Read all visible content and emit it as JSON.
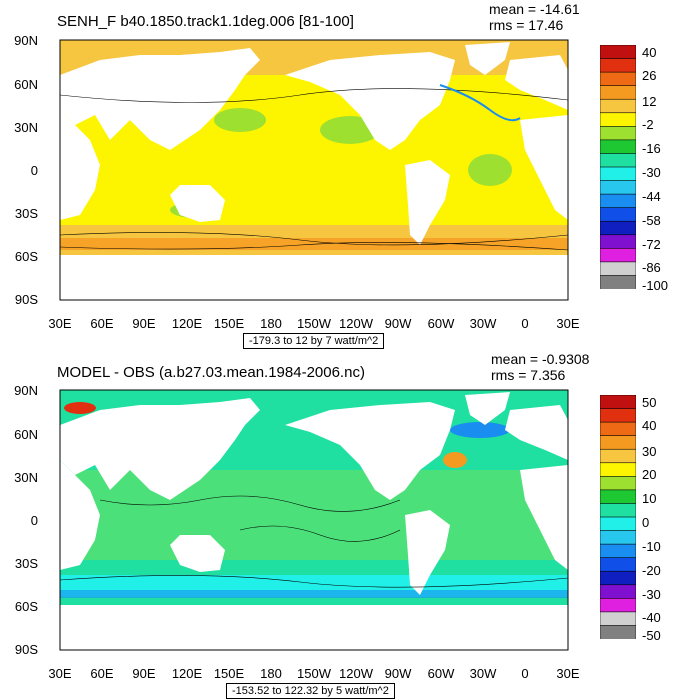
{
  "panels": [
    {
      "title": "SENH_F b40.1850.track1.1deg.006 [81-100]",
      "mean": "mean = -14.61",
      "rms": "rms = 17.46",
      "caption": "-179.3 to 12 by 7 watt/m^2",
      "lat_labels": [
        "90N",
        "60N",
        "30N",
        "0",
        "30S",
        "60S",
        "90S"
      ],
      "lon_labels": [
        "30E",
        "60E",
        "90E",
        "120E",
        "150E",
        "180",
        "150W",
        "120W",
        "90W",
        "60W",
        "30W",
        "0",
        "30E"
      ],
      "colorbar_labels": [
        "40",
        "26",
        "12",
        "-2",
        "-16",
        "-30",
        "-44",
        "-58",
        "-72",
        "-86",
        "-100"
      ],
      "colorbar_colors": [
        "#c01010",
        "#e03010",
        "#ee6a14",
        "#f59a20",
        "#f7c640",
        "#fdf500",
        "#9ee030",
        "#1ec832",
        "#1fe0a0",
        "#20f0e8",
        "#28c8ee",
        "#1a8ef0",
        "#1050e8",
        "#1020c0",
        "#8010d0",
        "#e020e0",
        "#d0d0d0",
        "#808080"
      ]
    },
    {
      "title": "MODEL - OBS (a.b27.03.mean.1984-2006.nc)",
      "mean": "mean = -0.9308",
      "rms": "rms = 7.356",
      "caption": "-153.52 to 122.32 by 5 watt/m^2",
      "lat_labels": [
        "90N",
        "60N",
        "30N",
        "0",
        "30S",
        "60S",
        "90S"
      ],
      "lon_labels": [
        "30E",
        "60E",
        "90E",
        "120E",
        "150E",
        "180",
        "150W",
        "120W",
        "90W",
        "60W",
        "30W",
        "0",
        "30E"
      ],
      "colorbar_labels": [
        "50",
        "40",
        "30",
        "20",
        "10",
        "0",
        "-10",
        "-20",
        "-30",
        "-40",
        "-50"
      ],
      "colorbar_colors": [
        "#c01010",
        "#e03010",
        "#ee6a14",
        "#f59a20",
        "#f7c640",
        "#fdf500",
        "#9ee030",
        "#1ec832",
        "#1fe0a0",
        "#20f0e8",
        "#28c8ee",
        "#1a8ef0",
        "#1050e8",
        "#1020c0",
        "#8010d0",
        "#e020e0",
        "#d0d0d0",
        "#808080"
      ]
    }
  ],
  "map_colors": {
    "land": "#ffffff",
    "top_ocean": "#fdf500",
    "top_warm": "#f7c640",
    "top_cool": "#9ee030",
    "top_cold": "#1ec832",
    "top_strong": "#f59a20",
    "bottom_ocean": "#1fe0a0",
    "bottom_green": "#9ee030",
    "bottom_cyan": "#20f0e8",
    "bottom_blue": "#1a8ef0",
    "bottom_red": "#e03010",
    "bottom_orange": "#f59a20"
  }
}
